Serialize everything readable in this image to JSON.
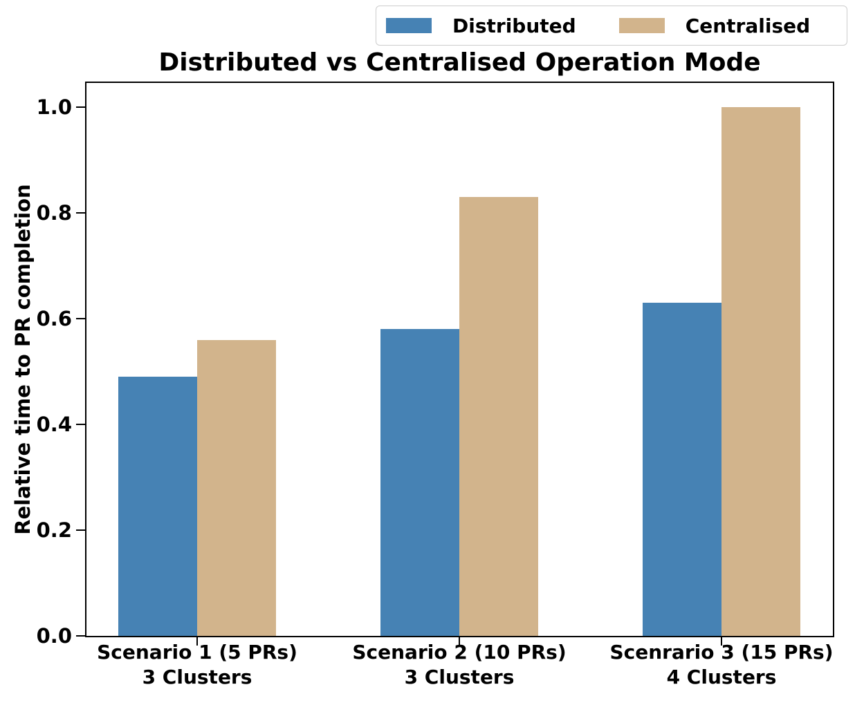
{
  "chart_data": {
    "type": "bar",
    "title": "Distributed vs Centralised Operation Mode",
    "ylabel": "Relative time to PR completion",
    "xlabel": "",
    "ylim": [
      0.0,
      1.05
    ],
    "yticks": [
      0.0,
      0.2,
      0.4,
      0.6,
      0.8,
      1.0
    ],
    "grid": false,
    "legend_position": "top-right-above-axes",
    "categories": [
      [
        "Scenario 1 (5 PRs)",
        "3 Clusters"
      ],
      [
        "Scenario 2 (10 PRs)",
        "3 Clusters"
      ],
      [
        "Scenrario 3 (15 PRs)",
        "4 Clusters"
      ]
    ],
    "series": [
      {
        "name": "Distributed",
        "color": "#4682B4",
        "values": [
          0.49,
          0.58,
          0.63
        ]
      },
      {
        "name": "Centralised",
        "color": "#D2B48C",
        "values": [
          0.56,
          0.83,
          1.0
        ]
      }
    ]
  }
}
